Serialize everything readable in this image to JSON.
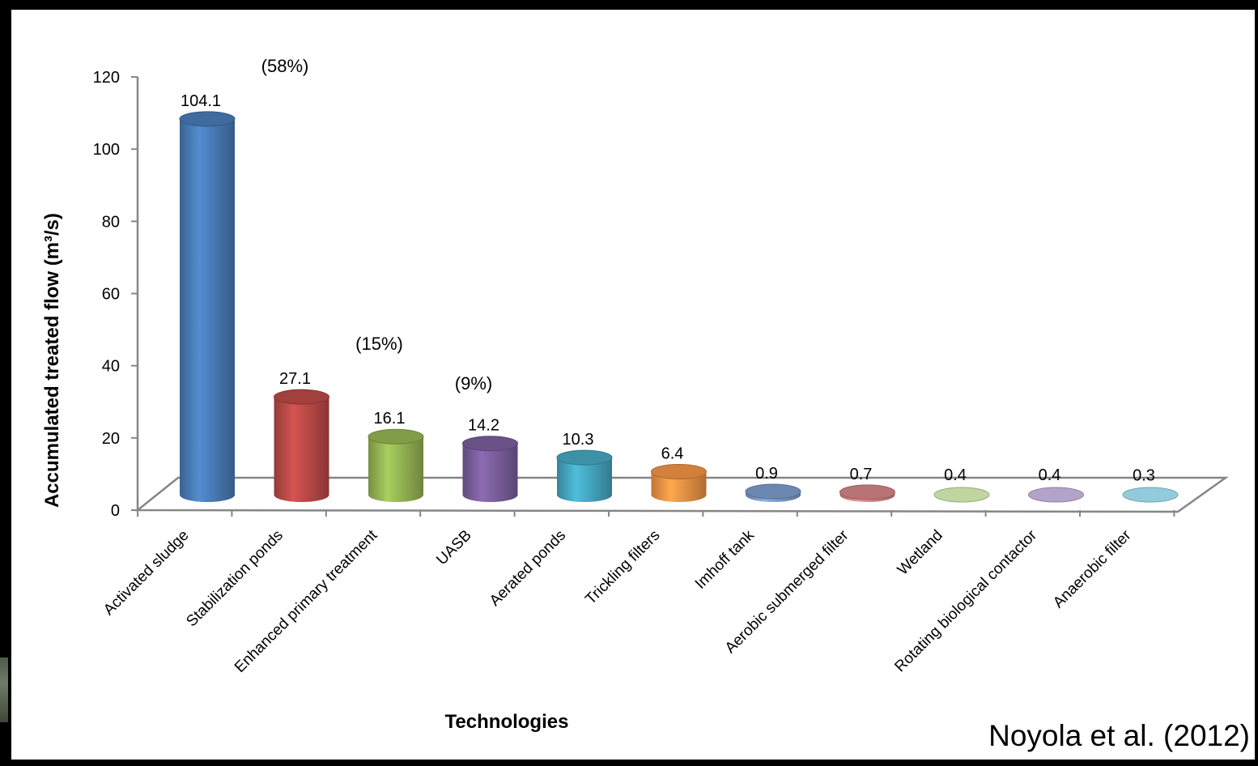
{
  "chart_data": {
    "type": "bar",
    "title": "",
    "xlabel": "Technologies",
    "ylabel": "Accumulated treated flow (m³/s)",
    "ylim": [
      0,
      120
    ],
    "yticks": [
      0,
      20,
      40,
      60,
      80,
      100,
      120
    ],
    "categories": [
      "Activated sludge",
      "Stabilization ponds",
      "Enhanced primary treatment",
      "UASB",
      "Aerated ponds",
      "Trickling filters",
      "Imhoff tank",
      "Aerobic submerged filter",
      "Wetland",
      "Rotating biological contactor",
      "Anaerobic filter"
    ],
    "values": [
      104.1,
      27.1,
      16.1,
      14.2,
      10.3,
      6.4,
      0.9,
      0.7,
      0.4,
      0.4,
      0.3
    ],
    "value_labels": [
      "104.1",
      "27.1",
      "16.1",
      "14.2",
      "10.3",
      "6.4",
      "0.9",
      "0.7",
      "0.4",
      "0.4",
      "0.3"
    ],
    "colors": [
      "#4a7ebb",
      "#be4b48",
      "#98b954",
      "#7d60a0",
      "#46aac5",
      "#f79646",
      "#7f9fcf",
      "#d9888a",
      "#b6ce8f",
      "#a793c0",
      "#7fc3d6"
    ],
    "annotations": [
      {
        "text": "(58%)",
        "category": "Activated sludge"
      },
      {
        "text": "(15%)",
        "category": "Stabilization ponds"
      },
      {
        "text": "(9%)",
        "category": "Enhanced primary treatment"
      }
    ],
    "grid": false,
    "style": "3d-cylinder"
  },
  "citation": "Noyola et al. (2012)"
}
